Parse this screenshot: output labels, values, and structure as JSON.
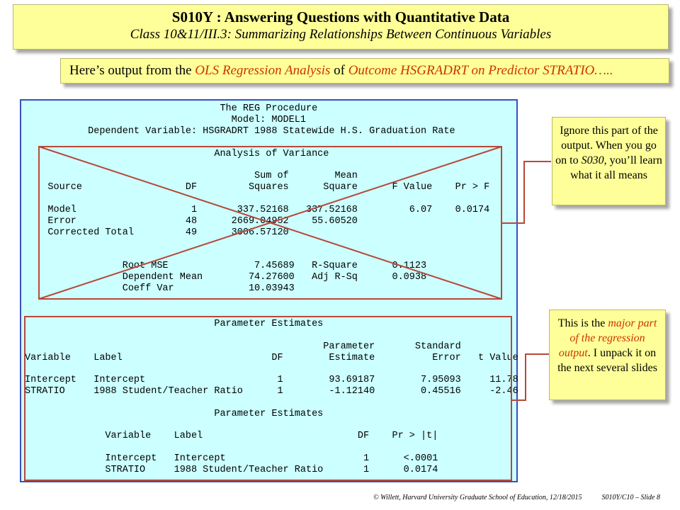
{
  "header": {
    "title": "S010Y : Answering Questions with Quantitative Data",
    "subtitle": "Class 10&11/III.3: Summarizing Relationships Between Continuous Variables"
  },
  "intro": {
    "parts": [
      "Here’s output from the ",
      "OLS Regression Analysis",
      " of ",
      "Outcome HSGRADRT on Predictor STRATIO….."
    ]
  },
  "sas_output": {
    "lines": [
      "                                  The REG Procedure",
      "                                    Model: MODEL1",
      "           Dependent Variable: HSGRADRT 1988 Statewide H.S. Graduation Rate",
      "                                 Analysis of Variance",
      "                                        Sum of        Mean",
      "    Source                  DF         Squares      Square      F Value    Pr > F",
      "    Model                    1       337.52168   337.52168         6.07    0.0174",
      "    Error                   48      2669.04952    55.60520",
      "    Corrected Total         49      3006.57120",
      "                 Root MSE               7.45689   R-Square      0.1123",
      "                 Dependent Mean        74.27600   Adj R-Sq      0.0938",
      "                 Coeff Var             10.03943",
      "                                 Parameter Estimates",
      "                                                    Parameter       Standard",
      "Variable    Label                          DF        Estimate          Error   t Value",
      "Intercept   Intercept                       1        93.69187        7.95093     11.78",
      "STRATIO     1988 Student/Teacher Ratio      1        -1.12140        0.45516     -2.46",
      "                                 Parameter Estimates",
      "              Variable    Label                           DF    Pr > |t|",
      "              Intercept   Intercept                        1      <.0001",
      "              STRATIO     1988 Student/Teacher Ratio       1      0.0174"
    ]
  },
  "callouts": [
    {
      "parts": [
        "Ignore this part of the output.  When you go on to ",
        "S030",
        ", you’ll learn what it all means"
      ]
    },
    {
      "parts": [
        "This is the ",
        "major part of the regression output",
        ". I unpack it on the next several slides"
      ]
    }
  ],
  "footer": {
    "credit": "© Willett, Harvard University Graduate School of Education, 12/18/2015",
    "slide": "S010Y/C10 – Slide 8"
  }
}
